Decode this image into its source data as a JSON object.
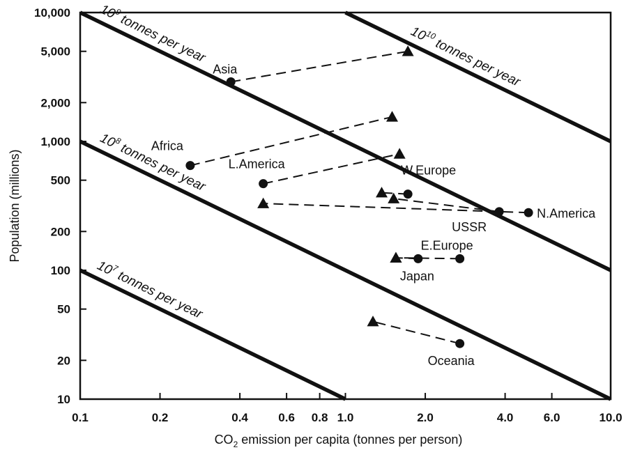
{
  "chart_data": {
    "type": "scatter",
    "xlabel_prefix": "CO",
    "xlabel_sub": "2",
    "xlabel_rest": " emission per capita (tonnes per person)",
    "ylabel": "Population (millions)",
    "xscale": "log",
    "yscale": "log",
    "xlim": [
      0.1,
      10.0
    ],
    "ylim": [
      10,
      10000
    ],
    "x_ticks": [
      {
        "value": 0.1,
        "label": "0.1"
      },
      {
        "value": 0.2,
        "label": "0.2"
      },
      {
        "value": 0.4,
        "label": "0.4"
      },
      {
        "value": 0.6,
        "label": "0.6"
      },
      {
        "value": 0.8,
        "label": "0.8"
      },
      {
        "value": 1.0,
        "label": "1.0"
      },
      {
        "value": 2.0,
        "label": "2.0"
      },
      {
        "value": 4.0,
        "label": "4.0"
      },
      {
        "value": 6.0,
        "label": "6.0"
      },
      {
        "value": 10.0,
        "label": "10.0"
      }
    ],
    "y_ticks": [
      {
        "value": 10,
        "label": "10"
      },
      {
        "value": 20,
        "label": "20"
      },
      {
        "value": 50,
        "label": "50"
      },
      {
        "value": 100,
        "label": "100"
      },
      {
        "value": 200,
        "label": "200"
      },
      {
        "value": 500,
        "label": "500"
      },
      {
        "value": 1000,
        "label": "1,000"
      },
      {
        "value": 2000,
        "label": "2,000"
      },
      {
        "value": 5000,
        "label": "5,000"
      },
      {
        "value": 10000,
        "label": "10,000"
      }
    ],
    "isolines": [
      {
        "total": 10000000,
        "base": "10",
        "exp": "7",
        "text": " tonnes per year"
      },
      {
        "total": 100000000,
        "base": "10",
        "exp": "8",
        "text": " tonnes per year"
      },
      {
        "total": 1000000000,
        "base": "10",
        "exp": "9",
        "text": " tonnes per year"
      },
      {
        "total": 10000000000,
        "base": "10",
        "exp": "10",
        "text": " tonnes per year"
      }
    ],
    "series": [
      {
        "label": "Asia",
        "circle": {
          "x": 0.37,
          "y": 2900
        },
        "triangle": {
          "x": 1.72,
          "y": 5000
        }
      },
      {
        "label": "Africa",
        "circle": {
          "x": 0.26,
          "y": 650
        },
        "triangle": {
          "x": 1.5,
          "y": 1550
        }
      },
      {
        "label": "L.America",
        "circle": {
          "x": 0.49,
          "y": 470
        },
        "triangle": {
          "x": 1.6,
          "y": 800
        }
      },
      {
        "label": "W.Europe",
        "circle": {
          "x": 1.72,
          "y": 390
        },
        "triangle": {
          "x": 1.37,
          "y": 400
        }
      },
      {
        "label": "USSR",
        "circle": {
          "x": 3.8,
          "y": 285
        },
        "triangle": {
          "x": 1.52,
          "y": 360
        }
      },
      {
        "label": "N.America",
        "circle": {
          "x": 4.9,
          "y": 280
        },
        "triangle": {
          "x": 0.49,
          "y": 330
        }
      },
      {
        "label": "E.Europe",
        "circle": {
          "x": 2.7,
          "y": 123
        },
        "triangle": {
          "x": 1.55,
          "y": 125
        }
      },
      {
        "label": "Japan",
        "circle": {
          "x": 1.88,
          "y": 123
        },
        "triangle": {
          "x": 1.55,
          "y": 125
        }
      },
      {
        "label": "Oceania",
        "circle": {
          "x": 2.7,
          "y": 27
        },
        "triangle": {
          "x": 1.27,
          "y": 40
        }
      }
    ]
  }
}
